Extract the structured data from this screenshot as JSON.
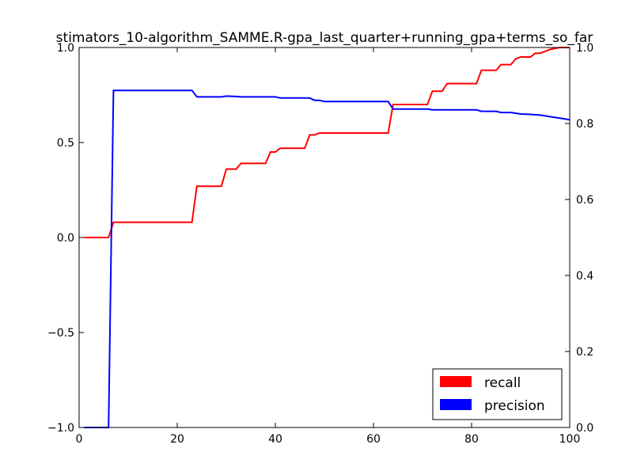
{
  "chart_data": {
    "type": "line",
    "title": "stimators_10-algorithm_SAMME.R-gpa_last_quarter+running_gpa+terms_so_far",
    "xlabel": "",
    "ylabel_left": "",
    "ylabel_right": "",
    "xlim": [
      0,
      100
    ],
    "ylim_left": [
      -1.0,
      1.0
    ],
    "ylim_right": [
      0.0,
      1.0
    ],
    "x_ticks": [
      "0",
      "20",
      "40",
      "60",
      "80",
      "100"
    ],
    "y_left_ticks": [
      "−1.0",
      "−0.5",
      "0.0",
      "0.5",
      "1.0"
    ],
    "y_right_ticks": [
      "0.0",
      "0.2",
      "0.4",
      "0.6",
      "0.8",
      "1.0"
    ],
    "grid": false,
    "legend_position": "lower-right",
    "series": [
      {
        "name": "recall",
        "axis": "left",
        "color": "#ff0000",
        "points": [
          [
            1,
            0.0
          ],
          [
            6,
            0.0
          ],
          [
            7,
            0.08
          ],
          [
            23,
            0.08
          ],
          [
            24,
            0.27
          ],
          [
            29,
            0.27
          ],
          [
            30,
            0.36
          ],
          [
            32,
            0.36
          ],
          [
            33,
            0.39
          ],
          [
            38,
            0.39
          ],
          [
            39,
            0.45
          ],
          [
            40,
            0.45
          ],
          [
            41,
            0.47
          ],
          [
            46,
            0.47
          ],
          [
            47,
            0.54
          ],
          [
            48,
            0.54
          ],
          [
            49,
            0.55
          ],
          [
            63,
            0.55
          ],
          [
            64,
            0.7
          ],
          [
            71,
            0.7
          ],
          [
            72,
            0.77
          ],
          [
            74,
            0.77
          ],
          [
            75,
            0.81
          ],
          [
            81,
            0.81
          ],
          [
            82,
            0.88
          ],
          [
            85,
            0.88
          ],
          [
            86,
            0.91
          ],
          [
            88,
            0.91
          ],
          [
            89,
            0.94
          ],
          [
            90,
            0.95
          ],
          [
            92,
            0.95
          ],
          [
            93,
            0.97
          ],
          [
            94,
            0.97
          ],
          [
            96,
            0.99
          ],
          [
            98,
            1.0
          ],
          [
            100,
            1.0
          ]
        ]
      },
      {
        "name": "precision",
        "axis": "right",
        "color": "#0000ff",
        "points": [
          [
            1,
            0.0
          ],
          [
            6,
            0.0
          ],
          [
            7,
            0.887
          ],
          [
            23,
            0.887
          ],
          [
            24,
            0.87
          ],
          [
            29,
            0.87
          ],
          [
            30,
            0.872
          ],
          [
            32,
            0.871
          ],
          [
            33,
            0.87
          ],
          [
            40,
            0.87
          ],
          [
            41,
            0.867
          ],
          [
            47,
            0.867
          ],
          [
            48,
            0.861
          ],
          [
            49,
            0.861
          ],
          [
            50,
            0.858
          ],
          [
            63,
            0.858
          ],
          [
            64,
            0.838
          ],
          [
            71,
            0.838
          ],
          [
            72,
            0.836
          ],
          [
            81,
            0.836
          ],
          [
            82,
            0.832
          ],
          [
            85,
            0.832
          ],
          [
            86,
            0.829
          ],
          [
            88,
            0.829
          ],
          [
            90,
            0.825
          ],
          [
            92,
            0.824
          ],
          [
            94,
            0.822
          ],
          [
            96,
            0.818
          ],
          [
            98,
            0.814
          ],
          [
            100,
            0.81
          ]
        ]
      }
    ]
  }
}
